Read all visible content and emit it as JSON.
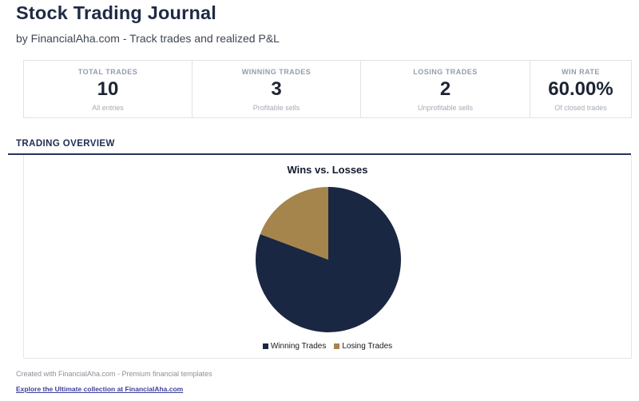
{
  "header": {
    "title": "Stock Trading Journal",
    "subtitle": "by FinancialAha.com - Track trades and realized P&L"
  },
  "stats": [
    {
      "label": "TOTAL TRADES",
      "value": "10",
      "sublabel": "All entries"
    },
    {
      "label": "WINNING TRADES",
      "value": "3",
      "sublabel": "Profitable sells"
    },
    {
      "label": "LOSING TRADES",
      "value": "2",
      "sublabel": "Unprofitable sells"
    },
    {
      "label": "WIN RATE",
      "value": "60.00%",
      "sublabel": "Of closed trades"
    }
  ],
  "section": {
    "heading": "TRADING OVERVIEW"
  },
  "chart_data": {
    "type": "pie",
    "title": "Wins vs. Losses",
    "slices": [
      {
        "label": "Winning Trades",
        "percent": 80.7,
        "color": "#1a2742"
      },
      {
        "label": "Losing Trades",
        "percent": 19.3,
        "color": "#a5854c"
      }
    ],
    "legend_position": "bottom",
    "start_angle": "top",
    "direction": "clockwise"
  },
  "footer": {
    "note": "Created with FinancialAha.com - Premium financial templates",
    "link": "Explore the Ultimate collection at FinancialAha.com"
  },
  "colors": {
    "accent_navy": "#1f2a44",
    "rule_navy": "#26345a",
    "pie_win": "#1a2742",
    "pie_loss": "#a5854c",
    "link": "#3d3f99"
  }
}
